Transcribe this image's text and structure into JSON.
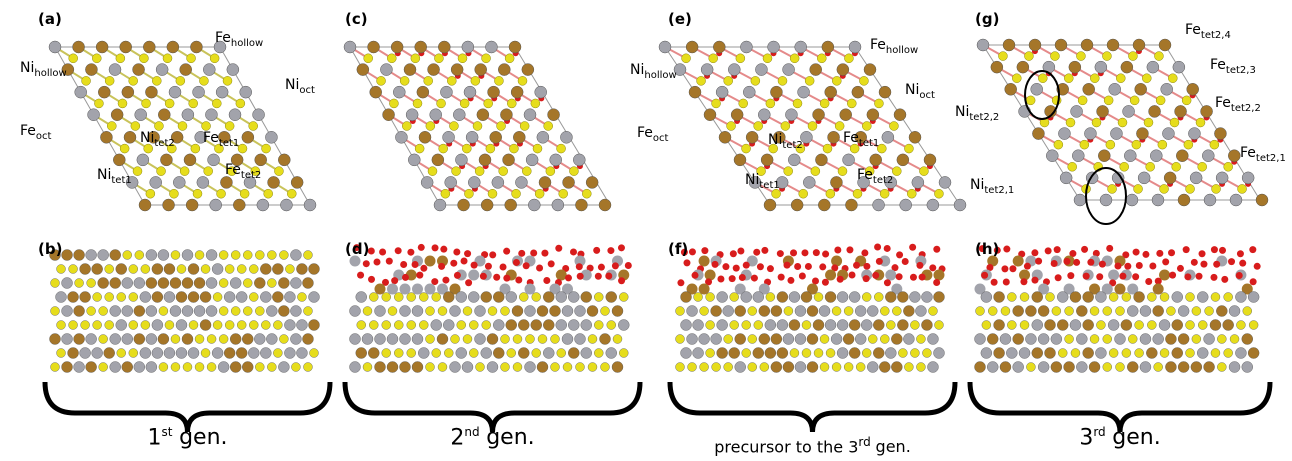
{
  "panels": [
    {
      "label": "(a)",
      "annotations": [
        {
          "base": "Fe",
          "sub": "hollow"
        },
        {
          "base": "Ni",
          "sub": "hollow"
        },
        {
          "base": "Ni",
          "sub": "oct"
        },
        {
          "base": "Fe",
          "sub": "oct"
        },
        {
          "base": "Ni",
          "sub": "tet2"
        },
        {
          "base": "Fe",
          "sub": "tet1"
        },
        {
          "base": "Fe",
          "sub": "tet2"
        },
        {
          "base": "Ni",
          "sub": "tet1"
        }
      ]
    },
    {
      "label": "(b)",
      "annotations": []
    },
    {
      "label": "(c)",
      "annotations": []
    },
    {
      "label": "(d)",
      "annotations": []
    },
    {
      "label": "(e)",
      "annotations": [
        {
          "base": "Fe",
          "sub": "hollow"
        },
        {
          "base": "Ni",
          "sub": "hollow"
        },
        {
          "base": "Ni",
          "sub": "oct"
        },
        {
          "base": "Fe",
          "sub": "oct"
        },
        {
          "base": "Ni",
          "sub": "tet2"
        },
        {
          "base": "Fe",
          "sub": "tet1"
        },
        {
          "base": "Fe",
          "sub": "tet2"
        },
        {
          "base": "Ni",
          "sub": "tet1"
        }
      ]
    },
    {
      "label": "(f)",
      "annotations": []
    },
    {
      "label": "(g)",
      "annotations": [
        {
          "base": "Fe",
          "sub": "tet2,4"
        },
        {
          "base": "Fe",
          "sub": "tet2,3"
        },
        {
          "base": "Fe",
          "sub": "tet2,2"
        },
        {
          "base": "Ni",
          "sub": "tet2,2"
        },
        {
          "base": "Fe",
          "sub": "tet2,1"
        },
        {
          "base": "Ni",
          "sub": "tet2,1"
        }
      ]
    },
    {
      "label": "(h)",
      "annotations": []
    }
  ],
  "generations": [
    {
      "prefix": "1",
      "sup": "st",
      "text": "gen."
    },
    {
      "prefix": "2",
      "sup": "nd",
      "text": "gen."
    },
    {
      "prefix": "precursor to the 3",
      "sup": "rd",
      "text": "gen."
    },
    {
      "prefix": "3",
      "sup": "rd",
      "text": "gen."
    }
  ]
}
